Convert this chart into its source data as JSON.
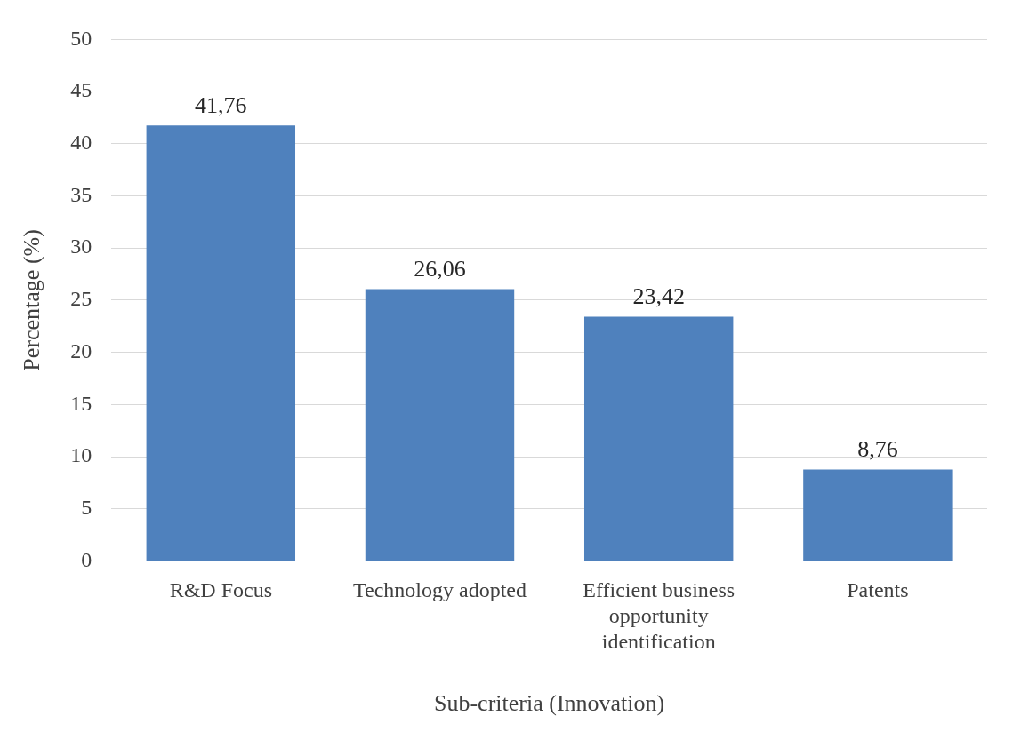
{
  "chart_data": {
    "type": "bar",
    "xlabel": "Sub-criteria (Innovation)",
    "ylabel": "Percentage (%)",
    "categories": [
      "R&D Focus",
      "Technology adopted",
      "Efficient business opportunity identification",
      "Patents"
    ],
    "values": [
      41.76,
      26.06,
      23.42,
      8.76
    ],
    "value_labels": [
      "41,76",
      "26,06",
      "23,42",
      "8,76"
    ],
    "color": "#4f81bd",
    "ylim": [
      0,
      50
    ],
    "yticks": [
      0,
      5,
      10,
      15,
      20,
      25,
      30,
      35,
      40,
      45,
      50
    ],
    "grid": "y",
    "legend": false
  }
}
